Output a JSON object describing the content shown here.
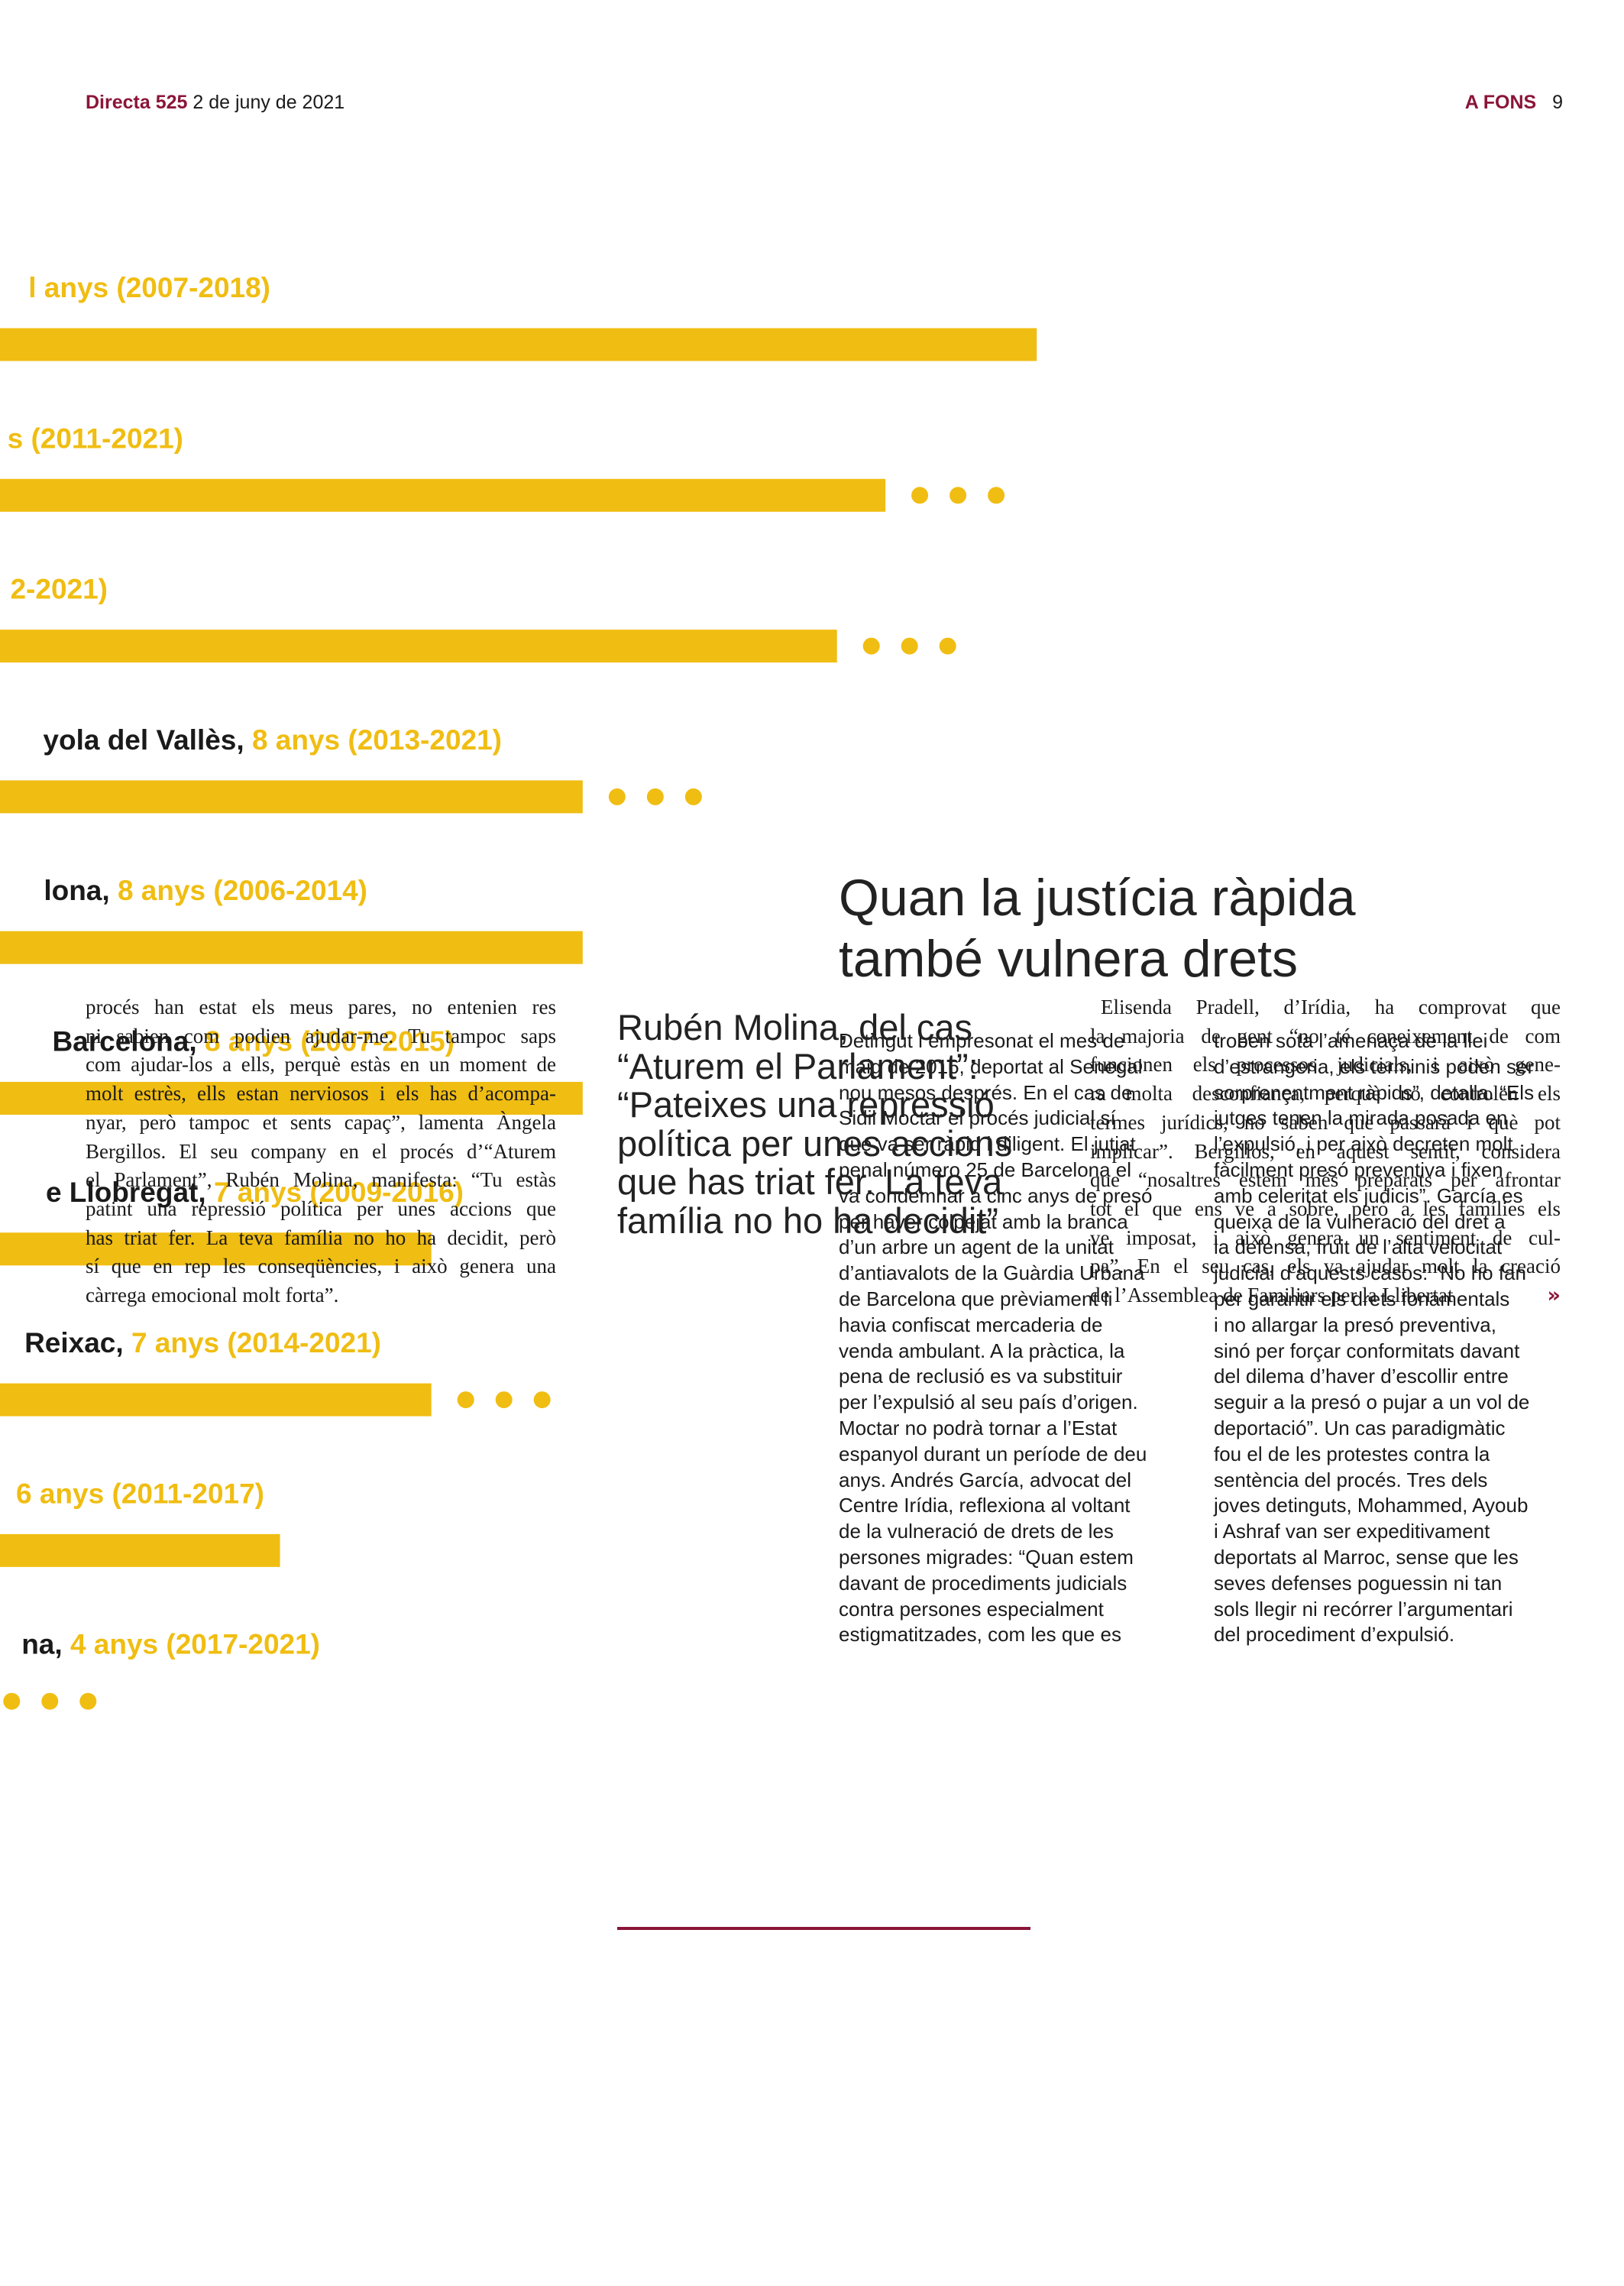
{
  "header": {
    "publication": "Directa 525",
    "date": "2 de juny de 2021",
    "section": "A FONS",
    "page": "9"
  },
  "chart_data": {
    "type": "bar",
    "orientation": "horizontal",
    "places": [
      null,
      null,
      null,
      "yola del Vallès,",
      "lona,",
      "Barcelona,",
      "e Llobregat,",
      "Reixac,",
      null,
      "na,"
    ],
    "periods": [
      "l anys (2007-2018)",
      "s (2011-2021)",
      "2-2021)",
      "8 anys (2013-2021)",
      "8 anys (2006-2014)",
      "8 anys (2007-2015)",
      "7 anys (2009-2016)",
      "7 anys (2014-2021)",
      "6 anys (2011-2017)",
      "4 anys (2017-2021)"
    ],
    "values": [
      11,
      10,
      9.68,
      8,
      8,
      8,
      7,
      7,
      6,
      4
    ],
    "ongoing": [
      false,
      true,
      true,
      true,
      false,
      false,
      false,
      true,
      false,
      true
    ],
    "xlim": [
      4.15,
      14.88
    ],
    "color": "#f0bd12"
  },
  "article": {
    "title_lines": [
      "Quan la justícia ràpida",
      "també vulnera drets"
    ],
    "columns": [
      [
        "Detingut i empresonat el mes de",
        "maig de 2016, deportat al Senegal",
        "nou mesos després. En el cas de",
        "Sidil Moctar el procés judicial sí",
        "que va ser ràpid i diligent. El jutjat",
        "penal número 25 de Barcelona el",
        "va condemnar a cinc anys de presó",
        "per haver colpejat amb la branca",
        "d’un arbre un agent de la unitat",
        "d’antiavalots de la Guàrdia Urbana",
        "de Barcelona que prèviament li",
        "havia confiscat mercaderia de",
        "venda ambulant. A la pràctica, la",
        "pena de reclusió es va substituir",
        "per l’expulsió al seu país d’origen.",
        "Moctar no podrà tornar a l’Estat",
        "espanyol durant un període de deu",
        "anys. Andrés García, advocat del",
        "Centre Irídia, reflexiona al voltant",
        "de la vulneració de drets de les",
        "persones migrades: “Quan estem",
        "davant de procediments judicials",
        "contra persones especialment",
        "estigmatitzades, com les que es"
      ],
      [
        "troben sota l’amenaça de la llei",
        "d’estrangeria, els terminis poden ser",
        "sorprenentment ràpids”, detalla. “Els",
        "jutges tenen la mirada posada en",
        "l’expulsió, i per això decreten molt",
        "fàcilment presó preventiva i fixen",
        "amb celeritat els judicis”. García es",
        "queixa de la vulneració del dret a",
        "la defensa, fruit de l’alta velocitat",
        "judicial d’aquests casos: “No ho fan",
        "per garantir els drets fonamentals",
        "i no allargar la presó preventiva,",
        "sinó per forçar conformitats davant",
        "del dilema d’haver d’escollir entre",
        "seguir a la presó o pujar a un vol de",
        "deportació”. Un cas paradigmàtic",
        "fou el de les protestes contra la",
        "sentència del procés. Tres dels",
        "joves detinguts, Mohammed, Ayoub",
        "i Ashraf van ser expeditivament",
        "deportats al Marroc, sense que les",
        "seves defenses poguessin ni tan",
        "sols llegir ni recórrer l’argumentari",
        "del procediment d’expulsió."
      ]
    ]
  },
  "bottom": {
    "left_lines": [
      "procés han estat els meus pares, no entenien res",
      "ni sabien com podien ajudar-me. Tu tampoc saps",
      "com ajudar-los a ells, perquè estàs en un moment de",
      "molt estrès, ells estan nerviosos i els has d’acompa-",
      "nyar, però tampoc et sents capaç”, lamenta Àngela",
      "Bergillos. El seu company en el procés d’“Aturem",
      "el Parlament”, Rubén Molina, manifesta: “Tu estàs",
      "patint una repressió política per unes accions que",
      "has triat fer. La teva família no ho ha decidit, però",
      "sí que en rep les conseqüències, i això genera una",
      "càrrega emocional molt forta”."
    ],
    "quote_lines": [
      "Rubén Molina, del cas",
      "“Aturem el Parlament”:",
      "“Pateixes una repressió",
      "política per unes accions",
      "que has triat fer. La teva",
      "família no ho ha decidit”"
    ],
    "right_lines": [
      "Elisenda Pradell, d’Irídia, ha comprovat que",
      "la majoria de gent “no té coneixement de com",
      "funcionen els processos judicials, i això gene-",
      "ra molta desconfiança, perquè no controlen els",
      "termes jurídics, no saben que passarà i què pot",
      "implicar”. Bergillos, en aquest sentit, considera",
      "que “nosaltres estem més preparats per afrontar",
      "tot el que ens ve a sobre, però a les famílies els",
      "ve imposat, i això genera un sentiment de cul-",
      "pa”. En el seu cas, els va ajudar molt la creació",
      "de l’Assemblea de Familiars per la Llibertat"
    ],
    "end_mark": "»"
  }
}
